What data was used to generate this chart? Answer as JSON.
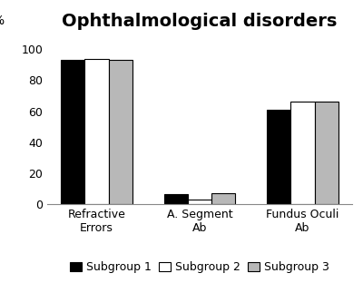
{
  "title": "Ophthalmological disorders",
  "percent_label": "%",
  "categories": [
    "Refractive\nErrors",
    "A. Segment\nAb",
    "Fundus Oculi\nAb"
  ],
  "series": {
    "Subgroup 1": [
      93,
      6,
      61
    ],
    "Subgroup 2": [
      94,
      3,
      66
    ],
    "Subgroup 3": [
      93,
      7,
      66
    ]
  },
  "colors": {
    "Subgroup 1": "#000000",
    "Subgroup 2": "#ffffff",
    "Subgroup 3": "#b8b8b8"
  },
  "bar_edge_color": "#000000",
  "ylim": [
    0,
    110
  ],
  "yticks": [
    0,
    20,
    40,
    60,
    80,
    100
  ],
  "title_fontsize": 14,
  "legend_fontsize": 9,
  "tick_fontsize": 9,
  "xtick_fontsize": 9,
  "bar_width": 0.23,
  "background_color": "#ffffff"
}
